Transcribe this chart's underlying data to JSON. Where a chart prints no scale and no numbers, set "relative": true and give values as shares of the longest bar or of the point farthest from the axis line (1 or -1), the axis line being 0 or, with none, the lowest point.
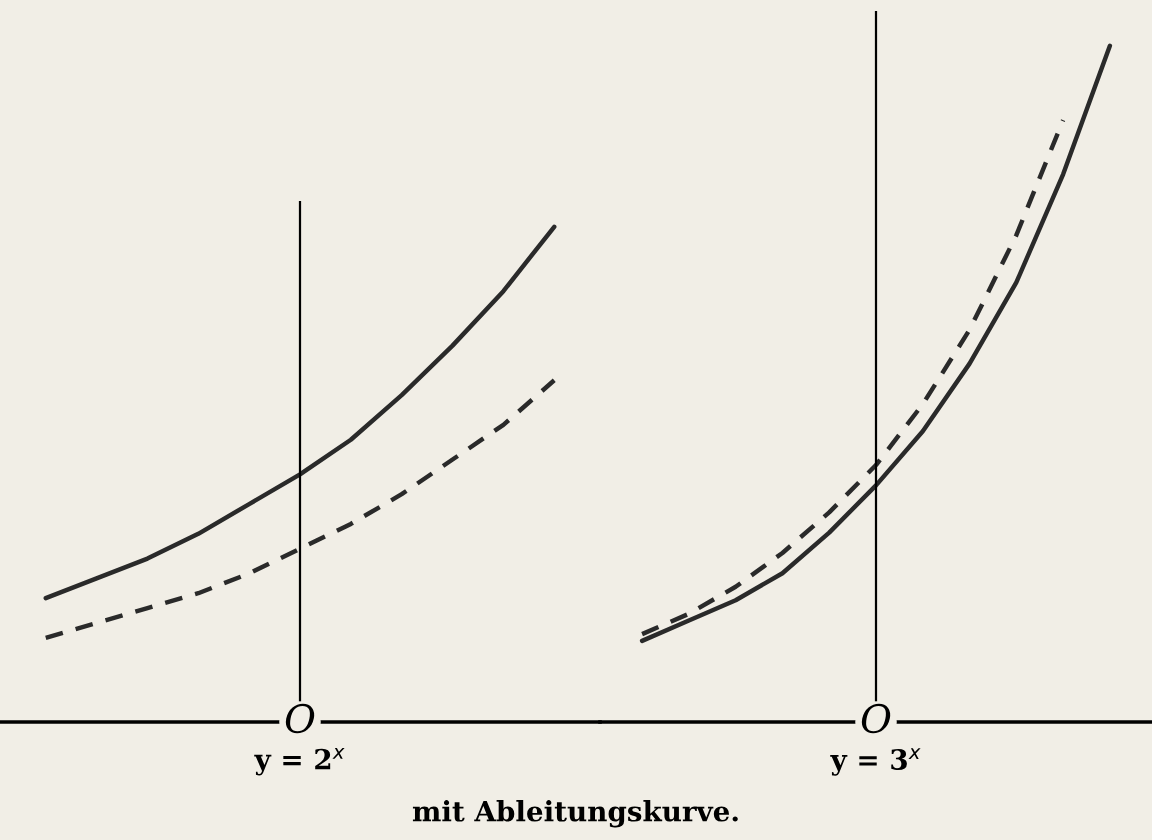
{
  "chart_data": [
    {
      "type": "line",
      "relative": true,
      "xlabel": "y = 2$^{x}$",
      "annotations": [
        "O"
      ],
      "legend": false,
      "marker": "none",
      "categories": [
        null,
        null,
        null,
        null,
        null,
        null,
        null,
        null,
        null,
        null,
        null
      ],
      "series": [
        {
          "color": "#2a2a2a",
          "line_style": "solid",
          "values": [
            0.25,
            0.29,
            0.33,
            0.38,
            0.44,
            0.5,
            0.57,
            0.66,
            0.76,
            0.87,
            1.0
          ]
        },
        {
          "color": "#2a2a2a",
          "line_style": "dashed",
          "values": [
            0.17,
            0.2,
            0.23,
            0.26,
            0.3,
            0.35,
            0.4,
            0.46,
            0.53,
            0.6,
            0.69
          ]
        }
      ]
    },
    {
      "type": "line",
      "relative": true,
      "xlabel": "y = 3$^{x}$",
      "annotations": [
        "O",
        "mit Ableitungskurve."
      ],
      "legend": false,
      "marker": "none",
      "categories": [
        null,
        null,
        null,
        null,
        null,
        null,
        null,
        null,
        null,
        null,
        null
      ],
      "series": [
        {
          "color": "#2a2a2a",
          "line_style": "solid",
          "values": [
            0.12,
            0.15,
            0.18,
            0.22,
            0.28,
            0.35,
            0.43,
            0.53,
            0.65,
            0.81,
            1.0
          ]
        },
        {
          "color": "#2a2a2a",
          "line_style": "dashed",
          "values": [
            0.13,
            0.16,
            0.2,
            0.25,
            0.31,
            0.38,
            0.47,
            0.58,
            0.72,
            0.89,
            null
          ]
        }
      ]
    }
  ]
}
